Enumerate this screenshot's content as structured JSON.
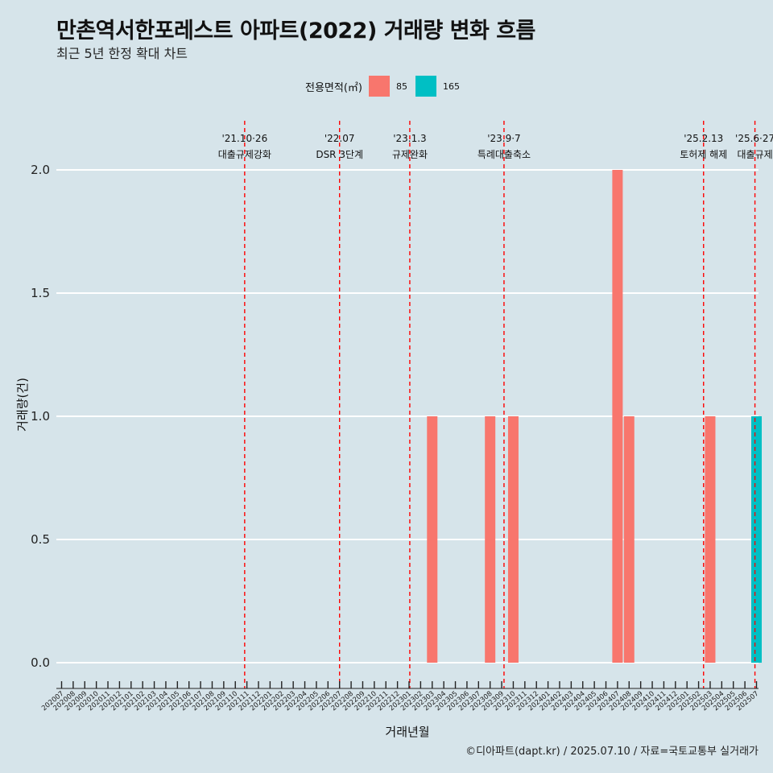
{
  "chart_data": {
    "type": "bar",
    "title": "만촌역서한포레스트 아파트(2022) 거래량 변화 흐름",
    "subtitle": "최근 5년 한정 확대 차트",
    "xlabel": "거래년월",
    "ylabel": "거래량(건)",
    "ylim": [
      0,
      2.05
    ],
    "y_ticks": [
      "0.0",
      "0.5",
      "1.0",
      "1.5",
      "2.0"
    ],
    "legend": {
      "title": "전용면적(㎡)",
      "position": "top",
      "entries": [
        {
          "label": "85",
          "color": "#f8766d"
        },
        {
          "label": "165",
          "color": "#00bfc4"
        }
      ]
    },
    "categories": [
      "202007",
      "202008",
      "202009",
      "202010",
      "202011",
      "202012",
      "202101",
      "202102",
      "202103",
      "202104",
      "202105",
      "202106",
      "202107",
      "202108",
      "202109",
      "202110",
      "202111",
      "202112",
      "202201",
      "202202",
      "202203",
      "202204",
      "202205",
      "202206",
      "202207",
      "202208",
      "202209",
      "202210",
      "202211",
      "202212",
      "202301",
      "202302",
      "202303",
      "202304",
      "202305",
      "202306",
      "202307",
      "202308",
      "202309",
      "202310",
      "202311",
      "202312",
      "202401",
      "202402",
      "202403",
      "202404",
      "202405",
      "202406",
      "202407",
      "202408",
      "202409",
      "202410",
      "202411",
      "202412",
      "202501",
      "202502",
      "202503",
      "202504",
      "202505",
      "202506",
      "202507"
    ],
    "series": [
      {
        "name": "85",
        "color": "#f8766d",
        "values": [
          0,
          0,
          0,
          0,
          0,
          0,
          0,
          0,
          0,
          0,
          0,
          0,
          0,
          0,
          0,
          0,
          0,
          0,
          0,
          0,
          0,
          0,
          0,
          0,
          0,
          0,
          0,
          0,
          0,
          0,
          0,
          0,
          1,
          0,
          0,
          0,
          0,
          1,
          0,
          1,
          0,
          0,
          0,
          0,
          0,
          0,
          0,
          0,
          2,
          1,
          0,
          0,
          0,
          0,
          0,
          0,
          1,
          0,
          0,
          0,
          0
        ]
      },
      {
        "name": "165",
        "color": "#00bfc4",
        "values": [
          0,
          0,
          0,
          0,
          0,
          0,
          0,
          0,
          0,
          0,
          0,
          0,
          0,
          0,
          0,
          0,
          0,
          0,
          0,
          0,
          0,
          0,
          0,
          0,
          0,
          0,
          0,
          0,
          0,
          0,
          0,
          0,
          0,
          0,
          0,
          0,
          0,
          0,
          0,
          0,
          0,
          0,
          0,
          0,
          0,
          0,
          0,
          0,
          0,
          0,
          0,
          0,
          0,
          0,
          0,
          0,
          0,
          0,
          0,
          0,
          1
        ]
      }
    ],
    "events": [
      {
        "date": "2021-10-26",
        "label_top": "'21.10·26",
        "label_bottom": "대출규제강화"
      },
      {
        "date": "2022-07-01",
        "label_top": "'22.07",
        "label_bottom": "DSR 3단계"
      },
      {
        "date": "2023-01-03",
        "label_top": "'23.1.3",
        "label_bottom": "규제완화"
      },
      {
        "date": "2023-09-07",
        "label_top": "'23.9·7",
        "label_bottom": "특례대출축소"
      },
      {
        "date": "2025-02-13",
        "label_top": "'25.2.13",
        "label_bottom": "토허제 해제"
      },
      {
        "date": "2025-06-27",
        "label_top": "'25.6·27",
        "label_bottom": "대출규제"
      }
    ],
    "event_line_color": "#ff0000",
    "grid": true
  },
  "caption": "©디아파트(dapt.kr) / 2025.07.10 / 자료=국토교통부 실거래가"
}
